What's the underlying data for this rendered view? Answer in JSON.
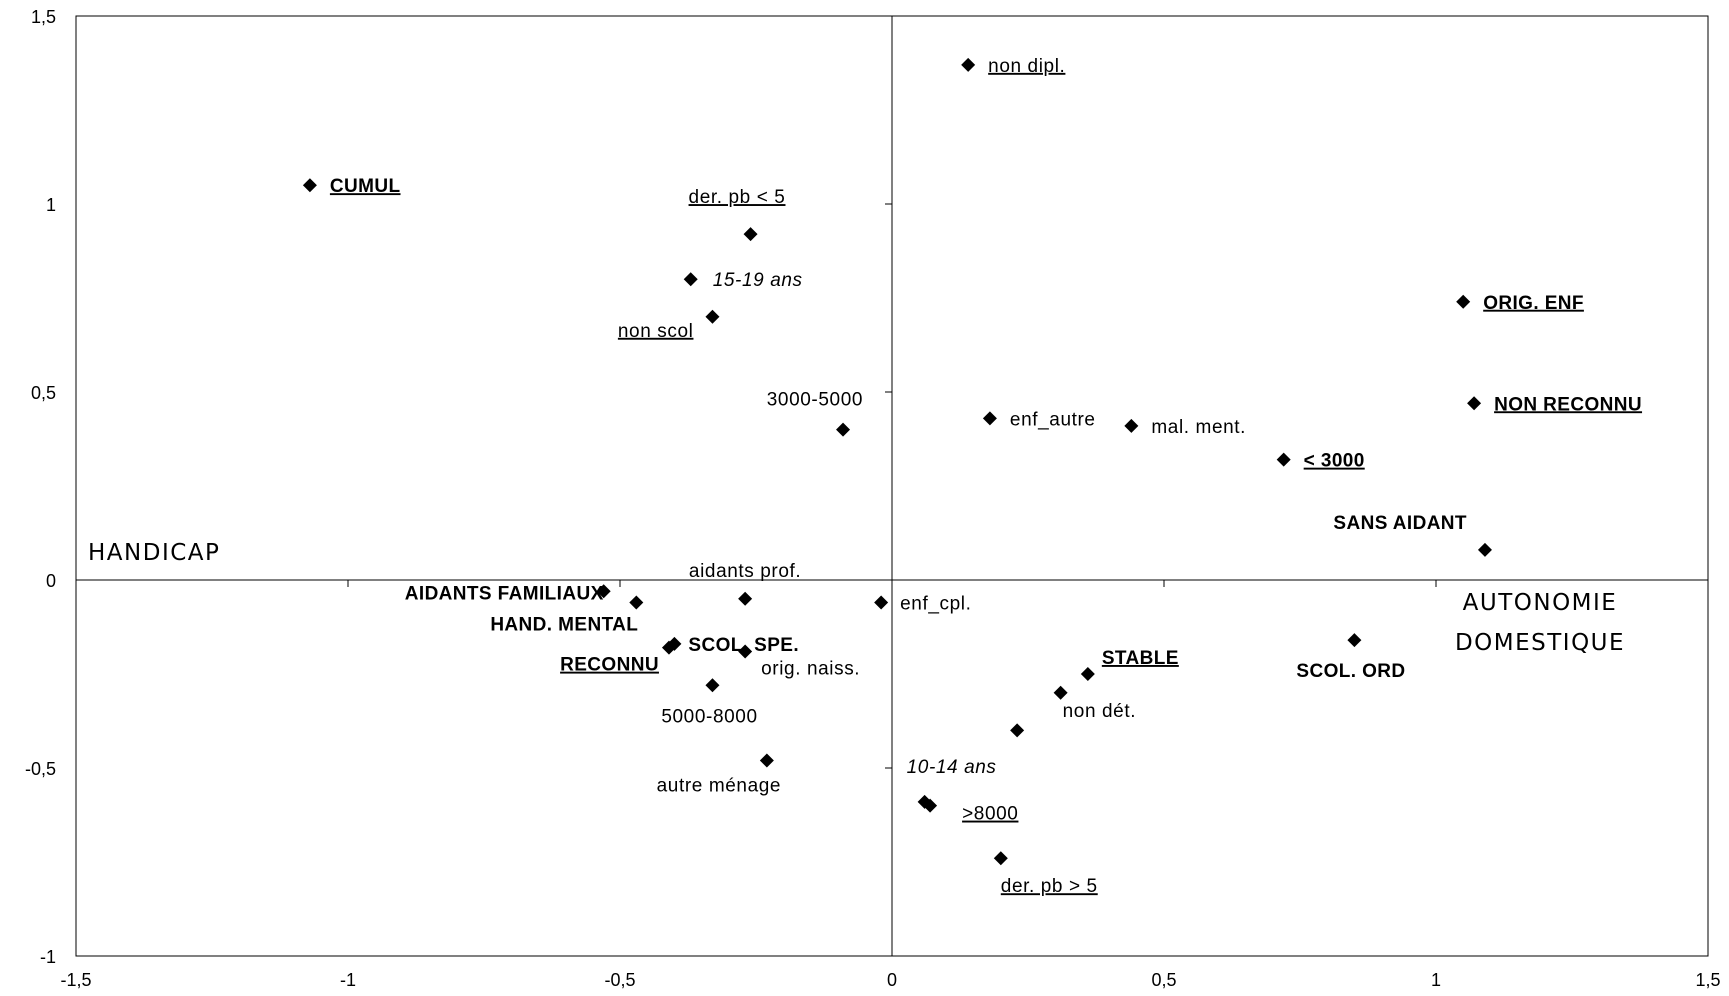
{
  "chart_data": {
    "type": "scatter",
    "title": "",
    "xlim": [
      -1.5,
      1.5
    ],
    "ylim": [
      -1,
      1.5
    ],
    "grid": false,
    "x_ticks": [
      "-1,5",
      "-1",
      "-0,5",
      "0",
      "0,5",
      "1",
      "1,5"
    ],
    "y_ticks": [
      "1,5",
      "1",
      "0,5",
      "0",
      "-0,5",
      "-1"
    ],
    "axis_annotations": {
      "x_left": "HANDICAP",
      "x_right_line1": "AUTONOMIE",
      "x_right_line2": "DOMESTIQUE"
    },
    "points": [
      {
        "x": -1.07,
        "y": 1.05,
        "label": "CUMUL",
        "bold": true,
        "underline": true,
        "italic": false
      },
      {
        "x": 0.14,
        "y": 1.37,
        "label": "non dipl.",
        "bold": false,
        "underline": true,
        "italic": false
      },
      {
        "x": -0.26,
        "y": 0.92,
        "label": "der. pb < 5",
        "bold": false,
        "underline": true,
        "italic": false
      },
      {
        "x": -0.37,
        "y": 0.8,
        "label": "15-19 ans",
        "bold": false,
        "underline": false,
        "italic": true
      },
      {
        "x": -0.33,
        "y": 0.7,
        "label": "non scol",
        "bold": false,
        "underline": true,
        "italic": false
      },
      {
        "x": -0.09,
        "y": 0.4,
        "label": "3000-5000",
        "bold": false,
        "underline": false,
        "italic": false
      },
      {
        "x": 0.18,
        "y": 0.43,
        "label": "enf_autre",
        "bold": false,
        "underline": false,
        "italic": false
      },
      {
        "x": 0.44,
        "y": 0.41,
        "label": "mal. ment.",
        "bold": false,
        "underline": false,
        "italic": false
      },
      {
        "x": 0.72,
        "y": 0.32,
        "label": "< 3000",
        "bold": true,
        "underline": true,
        "italic": false
      },
      {
        "x": 1.05,
        "y": 0.74,
        "label": "ORIG. ENF",
        "bold": true,
        "underline": true,
        "italic": false
      },
      {
        "x": 1.07,
        "y": 0.47,
        "label": "NON RECONNU",
        "bold": true,
        "underline": true,
        "italic": false
      },
      {
        "x": 1.09,
        "y": 0.08,
        "label": "SANS AIDANT",
        "bold": true,
        "underline": false,
        "italic": false
      },
      {
        "x": -0.53,
        "y": -0.03,
        "label": "AIDANTS FAMILIAUX",
        "bold": true,
        "underline": false,
        "italic": false
      },
      {
        "x": -0.27,
        "y": -0.05,
        "label": "aidants prof.",
        "bold": false,
        "underline": false,
        "italic": false
      },
      {
        "x": -0.47,
        "y": -0.06,
        "label": "HAND. MENTAL",
        "bold": true,
        "underline": false,
        "italic": false
      },
      {
        "x": -0.02,
        "y": -0.06,
        "label": "enf_cpl.",
        "bold": false,
        "underline": false,
        "italic": false
      },
      {
        "x": -0.4,
        "y": -0.17,
        "label": "SCOL. SPE.",
        "bold": true,
        "underline": false,
        "italic": false
      },
      {
        "x": -0.41,
        "y": -0.18,
        "label": "RECONNU",
        "bold": true,
        "underline": true,
        "italic": false
      },
      {
        "x": -0.27,
        "y": -0.19,
        "label": "orig. naiss.",
        "bold": false,
        "underline": false,
        "italic": false
      },
      {
        "x": -0.33,
        "y": -0.28,
        "label": "5000-8000",
        "bold": false,
        "underline": false,
        "italic": false
      },
      {
        "x": 0.36,
        "y": -0.25,
        "label": "STABLE",
        "bold": true,
        "underline": true,
        "italic": false
      },
      {
        "x": 0.85,
        "y": -0.16,
        "label": "SCOL. ORD",
        "bold": true,
        "underline": false,
        "italic": false
      },
      {
        "x": 0.31,
        "y": -0.3,
        "label": "non dét.",
        "bold": false,
        "underline": false,
        "italic": false
      },
      {
        "x": 0.23,
        "y": -0.4,
        "label": "",
        "bold": false,
        "underline": false,
        "italic": false
      },
      {
        "x": -0.23,
        "y": -0.48,
        "label": "autre ménage",
        "bold": false,
        "underline": false,
        "italic": false
      },
      {
        "x": 0.06,
        "y": -0.59,
        "label": "10-14 ans",
        "bold": false,
        "underline": false,
        "italic": true
      },
      {
        "x": 0.07,
        "y": -0.6,
        "label": ">8000",
        "bold": false,
        "underline": true,
        "italic": false
      },
      {
        "x": 0.2,
        "y": -0.74,
        "label": "der. pb > 5",
        "bold": false,
        "underline": true,
        "italic": false
      }
    ]
  }
}
